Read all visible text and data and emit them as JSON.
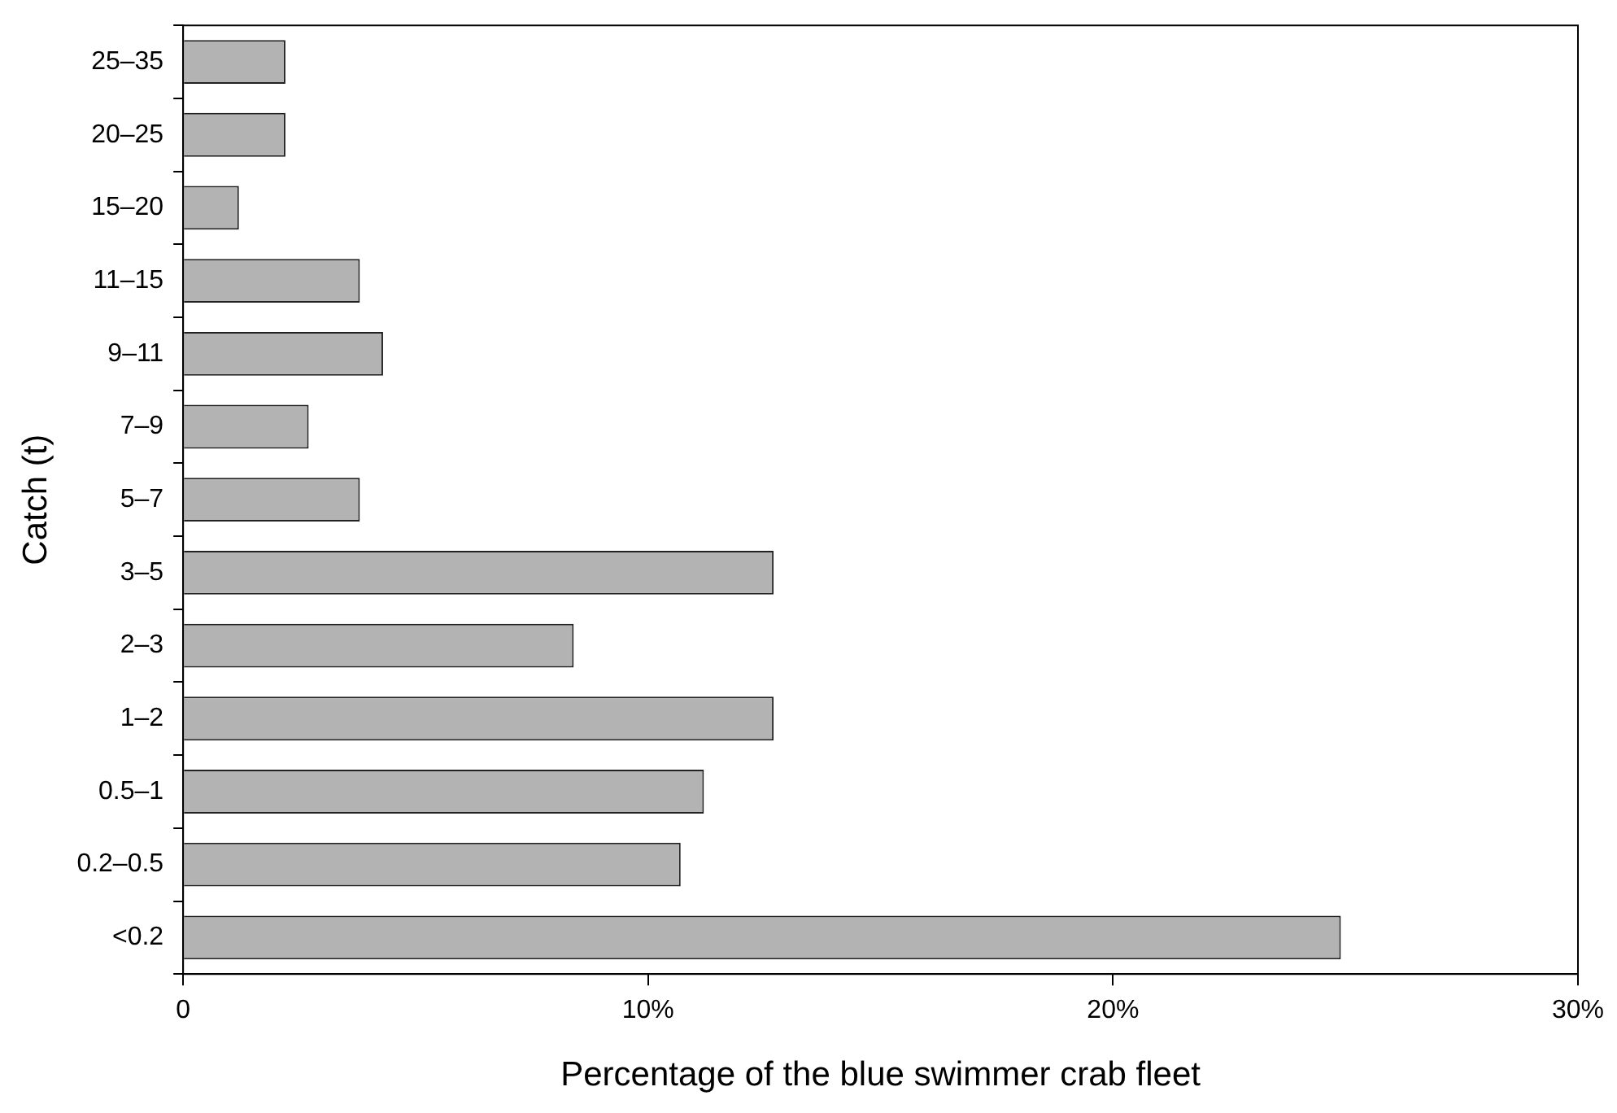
{
  "chart_data": {
    "type": "bar",
    "orientation": "horizontal",
    "xlabel": "Percentage of the blue swimmer crab fleet",
    "ylabel": "Catch (t)",
    "categories": [
      "25–35",
      "20–25",
      "15–20",
      "11–15",
      "9–11",
      "7–9",
      "5–7",
      "3–5",
      "2–3",
      "1–2",
      "0.5–1",
      "0.2–0.5",
      "<0.2"
    ],
    "values": [
      2.2,
      2.2,
      1.2,
      3.8,
      4.3,
      2.7,
      3.8,
      12.7,
      8.4,
      12.7,
      11.2,
      10.7,
      24.9
    ],
    "color": "#b3b3b3",
    "xlim": [
      0,
      30
    ],
    "xticks": [
      {
        "value": 0,
        "label": "0"
      },
      {
        "value": 10,
        "label": "10%"
      },
      {
        "value": 20,
        "label": "20%"
      },
      {
        "value": 30,
        "label": "30%"
      }
    ],
    "grid": false,
    "legend": false
  }
}
